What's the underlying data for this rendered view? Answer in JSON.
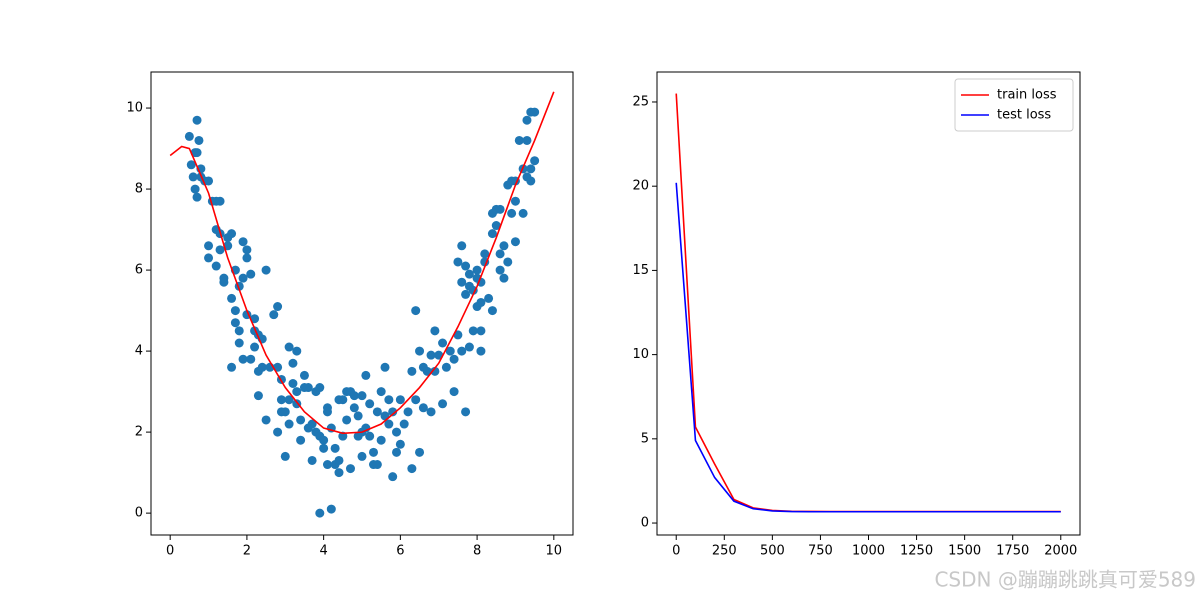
{
  "chart_data": [
    {
      "type": "scatter",
      "color": "#1f77b4",
      "x": [
        0.5,
        0.7,
        0.75,
        0.55,
        0.6,
        0.65,
        0.7,
        0.8,
        0.8,
        0.9,
        0.65,
        0.7,
        1.0,
        1.0,
        1.0,
        1.1,
        1.2,
        1.3,
        1.2,
        1.3,
        1.2,
        1.3,
        1.4,
        1.4,
        1.5,
        1.5,
        1.6,
        1.6,
        1.7,
        1.7,
        1.7,
        1.8,
        1.8,
        1.6,
        1.9,
        1.9,
        1.8,
        1.9,
        2.0,
        2.0,
        2.0,
        2.1,
        2.1,
        2.2,
        2.2,
        2.3,
        2.2,
        2.3,
        2.3,
        2.4,
        2.4,
        2.5,
        2.5,
        2.6,
        2.7,
        2.8,
        2.8,
        2.8,
        2.9,
        2.9,
        2.9,
        3.0,
        3.0,
        3.1,
        3.1,
        3.1,
        3.2,
        3.2,
        3.3,
        3.3,
        3.3,
        3.4,
        3.4,
        3.5,
        3.5,
        3.6,
        3.6,
        3.7,
        3.7,
        3.8,
        3.8,
        3.9,
        3.9,
        3.9,
        4.0,
        4.0,
        4.1,
        4.1,
        4.1,
        4.2,
        4.2,
        4.3,
        4.3,
        4.4,
        4.4,
        4.4,
        4.5,
        4.5,
        4.6,
        4.6,
        4.7,
        4.7,
        4.8,
        4.8,
        4.9,
        4.9,
        5.0,
        5.0,
        5.0,
        5.1,
        5.1,
        5.2,
        5.2,
        5.3,
        5.3,
        5.4,
        5.4,
        5.5,
        5.5,
        5.6,
        5.6,
        5.7,
        5.7,
        5.8,
        5.8,
        5.9,
        5.9,
        6.0,
        6.0,
        6.1,
        6.2,
        6.3,
        6.3,
        6.4,
        6.4,
        6.5,
        6.5,
        6.6,
        6.6,
        6.7,
        6.8,
        6.8,
        6.9,
        6.9,
        7.0,
        7.1,
        7.1,
        7.2,
        7.3,
        7.4,
        7.4,
        7.5,
        7.5,
        7.6,
        7.6,
        7.6,
        7.7,
        7.7,
        7.7,
        7.8,
        7.8,
        7.8,
        7.9,
        7.9,
        8.0,
        8.0,
        8.0,
        8.1,
        8.1,
        8.1,
        8.1,
        8.2,
        8.2,
        8.3,
        8.4,
        8.4,
        8.4,
        8.5,
        8.5,
        8.6,
        8.6,
        8.6,
        8.7,
        8.7,
        8.8,
        8.8,
        8.9,
        8.9,
        9.0,
        9.0,
        9.0,
        9.1,
        9.2,
        9.2,
        9.3,
        9.3,
        9.3,
        9.4,
        9.4,
        9.4,
        9.5,
        9.5
      ],
      "y": [
        9.3,
        9.7,
        9.2,
        8.6,
        8.3,
        8.0,
        7.8,
        8.5,
        8.3,
        8.2,
        8.9,
        8.9,
        8.2,
        6.6,
        6.3,
        7.7,
        7.7,
        7.7,
        7.0,
        6.9,
        6.1,
        6.5,
        5.8,
        5.7,
        6.6,
        6.8,
        6.9,
        5.3,
        5.0,
        4.7,
        6.0,
        5.6,
        4.5,
        3.6,
        5.8,
        3.8,
        4.2,
        6.7,
        6.5,
        6.3,
        4.9,
        5.9,
        3.8,
        4.8,
        4.5,
        4.4,
        4.1,
        2.9,
        3.5,
        4.3,
        3.6,
        2.3,
        6.0,
        3.6,
        4.9,
        5.1,
        3.6,
        2.0,
        2.8,
        2.5,
        3.3,
        2.5,
        1.4,
        4.1,
        2.8,
        2.2,
        3.7,
        3.2,
        4.0,
        3.0,
        2.7,
        1.8,
        2.3,
        3.4,
        3.1,
        3.1,
        2.1,
        2.2,
        1.3,
        3.0,
        2.0,
        3.1,
        0.0,
        1.9,
        1.8,
        1.6,
        2.6,
        2.5,
        1.2,
        2.1,
        0.1,
        1.2,
        1.6,
        2.8,
        1.0,
        1.3,
        2.8,
        1.9,
        3.0,
        2.3,
        3.0,
        1.1,
        2.9,
        2.6,
        2.4,
        1.9,
        2.9,
        2.0,
        1.4,
        3.4,
        2.1,
        2.7,
        1.9,
        1.5,
        1.2,
        2.5,
        1.2,
        3.0,
        1.8,
        3.6,
        2.4,
        2.8,
        2.2,
        0.9,
        2.5,
        1.5,
        2.0,
        2.8,
        1.7,
        2.2,
        2.5,
        3.5,
        1.1,
        5.0,
        2.8,
        4.0,
        1.5,
        3.6,
        2.6,
        3.5,
        3.9,
        2.5,
        4.5,
        3.5,
        3.9,
        4.2,
        2.7,
        3.6,
        4.0,
        3.8,
        3.0,
        4.4,
        6.2,
        6.6,
        5.7,
        4.0,
        2.5,
        6.1,
        5.4,
        5.9,
        5.6,
        4.1,
        5.5,
        4.5,
        6.0,
        5.8,
        5.1,
        5.7,
        5.2,
        4.5,
        4.0,
        6.4,
        6.2,
        5.3,
        7.4,
        6.9,
        5.0,
        7.5,
        7.1,
        7.5,
        6.4,
        6.0,
        6.6,
        5.8,
        8.1,
        6.2,
        8.2,
        7.4,
        8.2,
        7.7,
        6.7,
        9.2,
        8.5,
        7.4,
        9.2,
        9.7,
        8.3,
        9.9,
        8.5,
        8.2,
        9.9,
        8.7
      ],
      "line": {
        "color": "#ff0000",
        "x": [
          0,
          0.3,
          0.5,
          1,
          1.5,
          2,
          2.5,
          3,
          3.5,
          4,
          4.5,
          5,
          5.5,
          6,
          6.5,
          7,
          7.5,
          8,
          8.5,
          9,
          9.5,
          10
        ],
        "y": [
          8.83,
          9.05,
          9.0,
          7.9,
          6.3,
          5.0,
          3.9,
          3.1,
          2.5,
          2.1,
          1.97,
          2.0,
          2.2,
          2.6,
          3.1,
          3.7,
          4.6,
          5.6,
          6.8,
          8.1,
          9.2,
          10.4
        ]
      },
      "xlim": [
        -0.5,
        10.5
      ],
      "ylim": [
        -0.54,
        10.89
      ],
      "xticks": [
        0,
        2,
        4,
        6,
        8,
        10
      ],
      "yticks": [
        0,
        2,
        4,
        6,
        8,
        10
      ]
    },
    {
      "type": "line",
      "x": [
        0,
        100,
        200,
        300,
        400,
        500,
        600,
        700,
        800,
        900,
        1000,
        1100,
        1200,
        1300,
        1400,
        1500,
        1600,
        1700,
        1800,
        1900,
        2000
      ],
      "series": [
        {
          "name": "train loss",
          "color": "#ff0000",
          "values": [
            25.5,
            5.7,
            3.5,
            1.4,
            0.9,
            0.75,
            0.7,
            0.69,
            0.68,
            0.68,
            0.68,
            0.68,
            0.68,
            0.68,
            0.68,
            0.68,
            0.68,
            0.68,
            0.68,
            0.68,
            0.68
          ]
        },
        {
          "name": "test loss",
          "color": "#0000ff",
          "values": [
            20.2,
            4.9,
            2.7,
            1.3,
            0.85,
            0.72,
            0.68,
            0.67,
            0.67,
            0.67,
            0.67,
            0.67,
            0.67,
            0.67,
            0.67,
            0.67,
            0.67,
            0.67,
            0.67,
            0.67,
            0.67
          ]
        }
      ],
      "legend": "upper right",
      "xlim": [
        -100,
        2100
      ],
      "ylim": [
        -0.71,
        26.78
      ],
      "xticks": [
        0,
        250,
        500,
        750,
        1000,
        1250,
        1500,
        1750,
        2000
      ],
      "yticks": [
        0,
        5,
        10,
        15,
        20,
        25
      ]
    }
  ],
  "watermark": "CSDN @蹦蹦跳跳真可爱589"
}
